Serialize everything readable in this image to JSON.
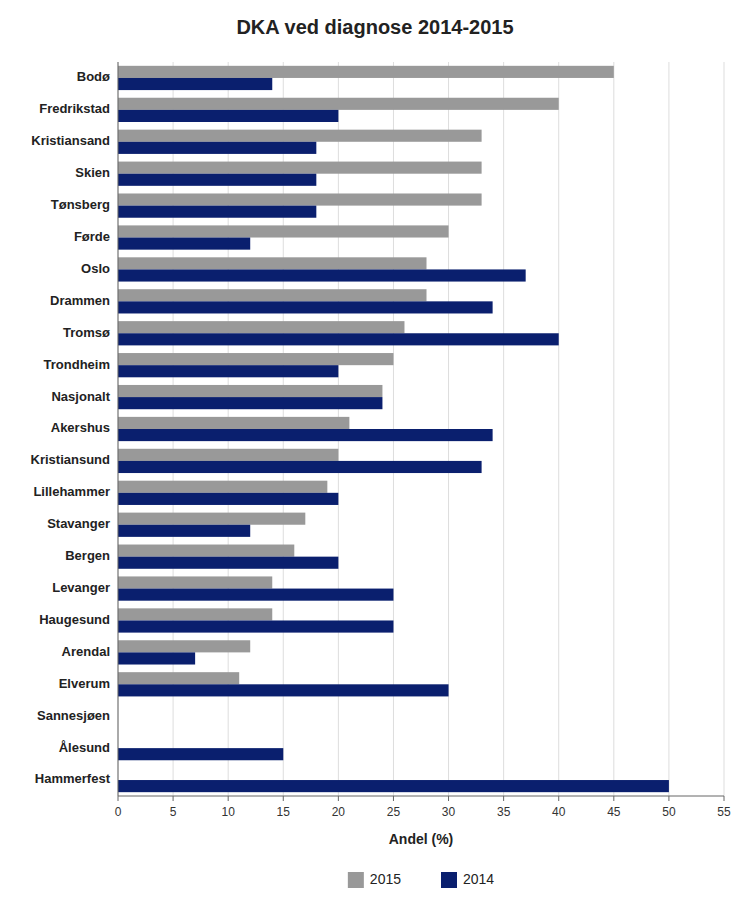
{
  "chart_data": {
    "type": "bar",
    "orientation": "horizontal",
    "title": "DKA ved diagnose 2014-2015",
    "xlabel": "Andel (%)",
    "categories": [
      "Bodø",
      "Fredrikstad",
      "Kristiansand",
      "Skien",
      "Tønsberg",
      "Førde",
      "Oslo",
      "Drammen",
      "Tromsø",
      "Trondheim",
      "Nasjonalt",
      "Akershus",
      "Kristiansund",
      "Lillehammer",
      "Stavanger",
      "Bergen",
      "Levanger",
      "Haugesund",
      "Arendal",
      "Elverum",
      "Sannesjøen",
      "Ålesund",
      "Hammerfest"
    ],
    "series": [
      {
        "name": "2015",
        "color": "#999999",
        "values": [
          45,
          40,
          33,
          33,
          33,
          30,
          28,
          28,
          26,
          25,
          24,
          21,
          20,
          19,
          17,
          16,
          14,
          14,
          12,
          11,
          0,
          0,
          0
        ]
      },
      {
        "name": "2014",
        "color": "#0a1f6e",
        "values": [
          14,
          20,
          18,
          18,
          18,
          12,
          37,
          34,
          40,
          20,
          24,
          34,
          33,
          20,
          12,
          20,
          25,
          25,
          7,
          30,
          0,
          15,
          50
        ]
      }
    ],
    "xlim": [
      0,
      55
    ],
    "xticks": [
      0,
      5,
      10,
      15,
      20,
      25,
      30,
      35,
      40,
      45,
      50,
      55
    ],
    "grid": true,
    "legend": "bottom"
  }
}
